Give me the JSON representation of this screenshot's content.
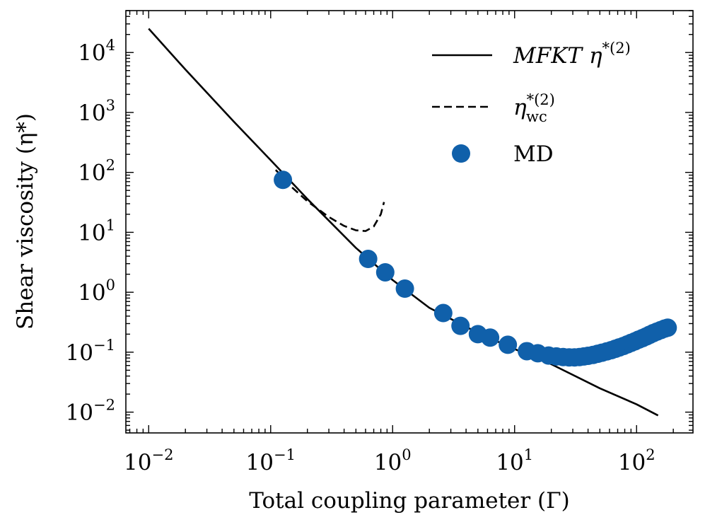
{
  "chart_data": {
    "type": "scatter",
    "title": "",
    "xlabel": "Total coupling parameter (Γ)",
    "ylabel": "Shear viscosity (η*)",
    "xscale": "log",
    "yscale": "log",
    "xlim": [
      0.0065,
      290
    ],
    "ylim": [
      0.0045,
      50000
    ],
    "x_ticks": [
      {
        "value": 0.01,
        "base": "10",
        "exp": "−2"
      },
      {
        "value": 0.1,
        "base": "10",
        "exp": "−1"
      },
      {
        "value": 1,
        "base": "10",
        "exp": "0"
      },
      {
        "value": 10,
        "base": "10",
        "exp": "1"
      },
      {
        "value": 100,
        "base": "10",
        "exp": "2"
      }
    ],
    "y_ticks": [
      {
        "value": 0.01,
        "base": "10",
        "exp": "−2"
      },
      {
        "value": 0.1,
        "base": "10",
        "exp": "−1"
      },
      {
        "value": 1,
        "base": "10",
        "exp": "0"
      },
      {
        "value": 10,
        "base": "10",
        "exp": "1"
      },
      {
        "value": 100,
        "base": "10",
        "exp": "2"
      },
      {
        "value": 1000,
        "base": "10",
        "exp": "3"
      },
      {
        "value": 10000,
        "base": "10",
        "exp": "4"
      }
    ],
    "grid": false,
    "legend_position": "top-right",
    "series": [
      {
        "name": "MFKT η*(2)",
        "style": "solid",
        "color": "#000000",
        "x": [
          0.01,
          0.02,
          0.05,
          0.1,
          0.2,
          0.5,
          1,
          2,
          5,
          10,
          20,
          50,
          100,
          150
        ],
        "y": [
          25000,
          5200,
          700,
          160,
          36,
          5.5,
          1.6,
          0.55,
          0.21,
          0.113,
          0.063,
          0.025,
          0.0135,
          0.0088
        ]
      },
      {
        "name": "η_wc*(2)",
        "style": "dashed",
        "color": "#000000",
        "x": [
          0.11,
          0.15,
          0.2,
          0.3,
          0.4,
          0.5,
          0.6,
          0.7,
          0.8,
          0.85
        ],
        "y": [
          110,
          56,
          33,
          18,
          12.8,
          10.8,
          10.5,
          12.5,
          20,
          32
        ]
      },
      {
        "name": "MD",
        "style": "marker",
        "color": "#1060aa",
        "x": [
          0.126,
          0.63,
          0.87,
          1.26,
          2.6,
          3.6,
          5.0,
          6.3,
          8.8,
          12.6,
          15.5,
          19,
          22,
          25,
          28,
          31,
          34,
          37,
          40,
          44,
          48,
          52,
          57,
          62,
          67,
          72,
          78,
          84,
          90,
          97,
          104,
          112,
          120,
          128,
          137,
          147,
          158,
          170,
          180
        ],
        "y": [
          75,
          3.6,
          2.15,
          1.15,
          0.45,
          0.275,
          0.2,
          0.175,
          0.133,
          0.104,
          0.096,
          0.088,
          0.085,
          0.083,
          0.082,
          0.082,
          0.083,
          0.085,
          0.087,
          0.09,
          0.094,
          0.098,
          0.103,
          0.108,
          0.114,
          0.12,
          0.127,
          0.135,
          0.143,
          0.152,
          0.162,
          0.172,
          0.183,
          0.195,
          0.208,
          0.221,
          0.234,
          0.248,
          0.256
        ]
      }
    ],
    "legend": {
      "mfkt_main": "MFKT η",
      "mfkt_sup": "*(2)",
      "wc_main": "η",
      "wc_sup": "*(2)",
      "wc_sub": "wc",
      "md": "MD"
    }
  }
}
